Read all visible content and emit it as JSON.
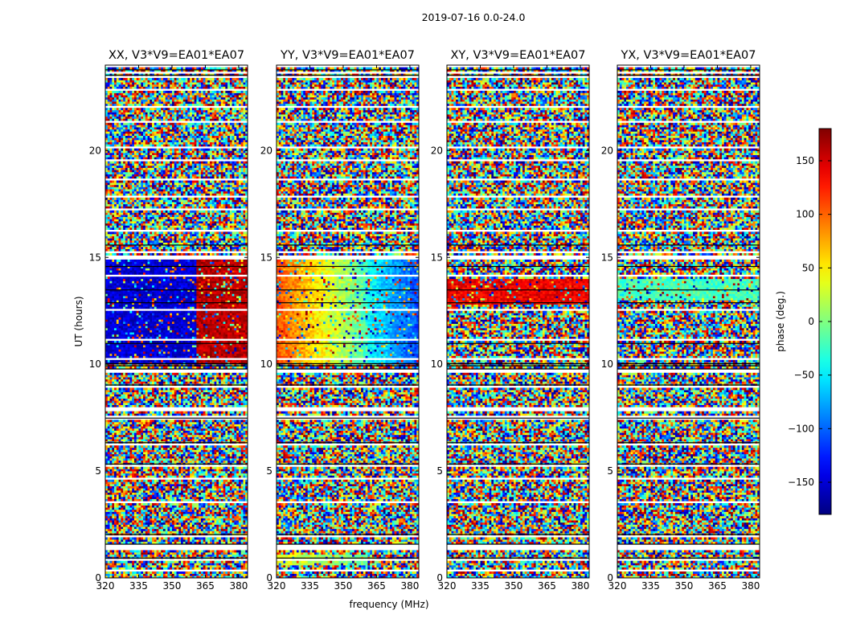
{
  "figure": {
    "suptitle": "2019-07-16 0.0-24.0"
  },
  "xlabel": "frequency (MHz)",
  "ylabel": "UT (hours)",
  "colorbar": {
    "label": "phase (deg.)",
    "range": [
      -180,
      180
    ],
    "ticks": [
      -150,
      -100,
      -50,
      0,
      50,
      100,
      150
    ],
    "colormap": "jet"
  },
  "chart_data": [
    {
      "type": "heatmap",
      "title": "XX, V3*V9=EA01*EA07",
      "xlabel": "",
      "ylabel": "UT (hours)",
      "xlim": [
        320,
        384
      ],
      "ylim": [
        0,
        24
      ],
      "xticks": [
        320,
        335,
        350,
        365,
        380
      ],
      "yticks": [
        0,
        5,
        10,
        15,
        20
      ],
      "value": "phase (deg.)",
      "coherent_blocks": [
        {
          "ut": [
            10.0,
            15.0
          ],
          "freq": [
            320,
            361
          ],
          "phase_deg": -150
        },
        {
          "ut": [
            10.0,
            15.0
          ],
          "freq": [
            361,
            384
          ],
          "phase_deg": 160
        }
      ]
    },
    {
      "type": "heatmap",
      "title": "YY, V3*V9=EA01*EA07",
      "xlabel": "frequency (MHz)",
      "ylabel": "",
      "xlim": [
        320,
        384
      ],
      "ylim": [
        0,
        24
      ],
      "xticks": [
        320,
        335,
        350,
        365,
        380
      ],
      "yticks": [
        0,
        5,
        10,
        15,
        20
      ],
      "value": "phase (deg.)",
      "coherent_blocks": [
        {
          "ut": [
            10.0,
            15.0
          ],
          "freq": [
            320,
            361
          ],
          "phase_start_deg": 110,
          "phase_end_deg": -20
        },
        {
          "ut": [
            10.0,
            15.0
          ],
          "freq": [
            361,
            384
          ],
          "phase_start_deg": -40,
          "phase_end_deg": -110
        },
        {
          "ut": [
            0.6,
            1.1
          ],
          "freq": [
            320,
            361
          ],
          "phase_start_deg": 40,
          "phase_end_deg": -10
        }
      ]
    },
    {
      "type": "heatmap",
      "title": "XY, V3*V9=EA01*EA07",
      "xlabel": "",
      "ylabel": "",
      "xlim": [
        320,
        384
      ],
      "ylim": [
        0,
        24
      ],
      "xticks": [
        320,
        335,
        350,
        365,
        380
      ],
      "yticks": [
        0,
        5,
        10,
        15,
        20
      ],
      "value": "phase (deg.)",
      "coherent_blocks": [
        {
          "ut": [
            12.8,
            14.0
          ],
          "freq": [
            320,
            384
          ],
          "phase_deg": 140
        }
      ]
    },
    {
      "type": "heatmap",
      "title": "YX, V3*V9=EA01*EA07",
      "xlabel": "",
      "ylabel": "",
      "xlim": [
        320,
        384
      ],
      "ylim": [
        0,
        24
      ],
      "xticks": [
        320,
        335,
        350,
        365,
        380
      ],
      "yticks": [
        0,
        5,
        10,
        15,
        20
      ],
      "value": "phase (deg.)",
      "coherent_blocks": [
        {
          "ut": [
            13.0,
            14.0
          ],
          "freq": [
            320,
            384
          ],
          "phase_deg": -20
        }
      ]
    }
  ]
}
